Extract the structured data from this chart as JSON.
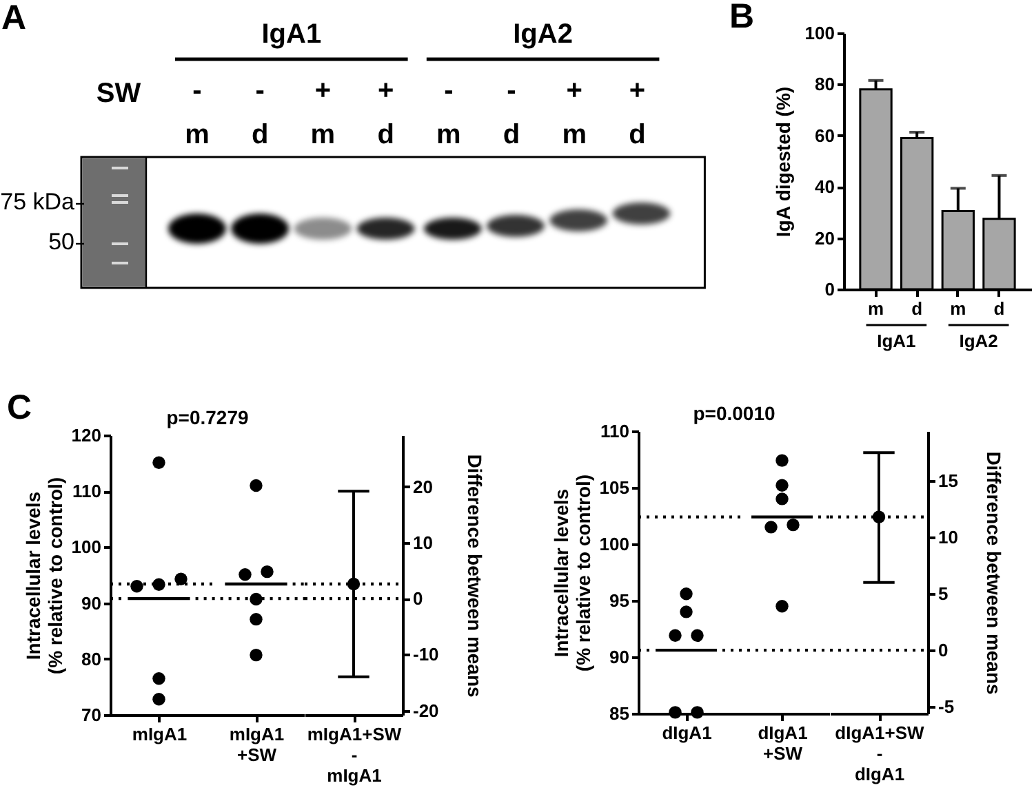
{
  "chart_data": [
    {
      "type": "other",
      "title": "A",
      "categories": [
        "m",
        "d",
        "m",
        "d",
        "m",
        "d",
        "m",
        "d"
      ],
      "annotations": [
        "IgA1",
        "IgA2",
        "SW",
        "-",
        "-",
        "+",
        "+",
        "-",
        "-",
        "+",
        "+",
        "75 kDa",
        "50"
      ]
    },
    {
      "type": "bar",
      "title": "B",
      "ylabel": "IgA digested (%)",
      "categories": [
        "m",
        "d",
        "m",
        "d"
      ],
      "values": [
        78,
        59,
        30.5,
        27.5
      ],
      "errors": [
        [
          78,
          81.5
        ],
        [
          59,
          61.3
        ],
        [
          30.5,
          39.4
        ],
        [
          27.5,
          44.4
        ]
      ],
      "color": "#a6a6a6",
      "ylim": [
        0,
        100
      ],
      "yticks": [
        0,
        20,
        40,
        60,
        80,
        100
      ],
      "annotations": [
        "IgA1",
        "IgA2"
      ]
    },
    {
      "type": "scatter",
      "title": "C",
      "ylabel": "Intracellular levels\n(% relative to control)",
      "categories": [
        "mIgA1",
        "mIgA1\n+SW"
      ],
      "ylim": [
        70,
        120
      ],
      "yticks": [
        70,
        80,
        90,
        100,
        110,
        120
      ],
      "annotations": [
        "p=0.7279"
      ],
      "ref_lines": [
        {
          "axis": "y",
          "value": 90.8,
          "line_style": "dotted"
        },
        {
          "axis": "y",
          "value": 93.4,
          "line_style": "dotted"
        }
      ],
      "series": [
        {
          "color": "#000000",
          "marker": "circle",
          "x": [
            "mIgA1",
            "mIgA1",
            "mIgA1",
            "mIgA1",
            "mIgA1",
            "mIgA1",
            "mIgA1\n+SW",
            "mIgA1\n+SW",
            "mIgA1\n+SW",
            "mIgA1\n+SW",
            "mIgA1\n+SW",
            "mIgA1\n+SW"
          ],
          "values": [
            115.1,
            94.3,
            93.3,
            93.0,
            76.5,
            72.8,
            111.0,
            95.6,
            95.1,
            90.7,
            87.1,
            80.7
          ]
        }
      ]
    },
    {
      "type": "scatter",
      "y2label": "Difference between means",
      "categories": [
        "mIgA1+SW\n-\nmIgA1"
      ],
      "y2lim": [
        -20.8,
        29.2
      ],
      "y2ticks": [
        -20,
        -10,
        0,
        10,
        20
      ],
      "ref_lines": [
        {
          "axis": "y2",
          "value": 0,
          "line_style": "dotted"
        },
        {
          "axis": "y2",
          "value": 2.6,
          "line_style": "dotted"
        }
      ],
      "series": [
        {
          "color": "#000000",
          "marker": "circle",
          "axis": "y2",
          "values": [
            2.6
          ],
          "errors": [
            [
              -14.0,
              19.2
            ]
          ]
        }
      ]
    },
    {
      "type": "scatter",
      "ylabel": "Intracellular levels\n(% relative to control)",
      "categories": [
        "dIgA1",
        "dIgA1\n+SW"
      ],
      "ylim": [
        85,
        110
      ],
      "yticks": [
        85,
        90,
        95,
        100,
        105,
        110
      ],
      "annotations": [
        "p=0.0010"
      ],
      "ref_lines": [
        {
          "axis": "y",
          "value": 90.6,
          "line_style": "dotted"
        },
        {
          "axis": "y",
          "value": 102.4,
          "line_style": "dotted"
        }
      ],
      "series": [
        {
          "color": "#000000",
          "marker": "circle",
          "x": [
            "dIgA1",
            "dIgA1",
            "dIgA1",
            "dIgA1",
            "dIgA1",
            "dIgA1",
            "dIgA1\n+SW",
            "dIgA1\n+SW",
            "dIgA1\n+SW",
            "dIgA1\n+SW",
            "dIgA1\n+SW",
            "dIgA1\n+SW"
          ],
          "values": [
            95.6,
            94.0,
            91.9,
            91.9,
            85.1,
            85.1,
            107.4,
            105.2,
            104.0,
            101.7,
            101.5,
            94.5
          ]
        }
      ]
    },
    {
      "type": "scatter",
      "y2label": "Difference between means",
      "categories": [
        "dIgA1+SW\n-\ndIgA1"
      ],
      "y2lim": [
        -5.6,
        19.4
      ],
      "y2ticks": [
        -5,
        0,
        5,
        10,
        15
      ],
      "ref_lines": [
        {
          "axis": "y2",
          "value": 0,
          "line_style": "dotted"
        },
        {
          "axis": "y2",
          "value": 11.8,
          "line_style": "dotted"
        }
      ],
      "series": [
        {
          "color": "#000000",
          "marker": "circle",
          "axis": "y2",
          "values": [
            11.8
          ],
          "errors": [
            [
              6.0,
              17.5
            ]
          ]
        }
      ]
    }
  ]
}
